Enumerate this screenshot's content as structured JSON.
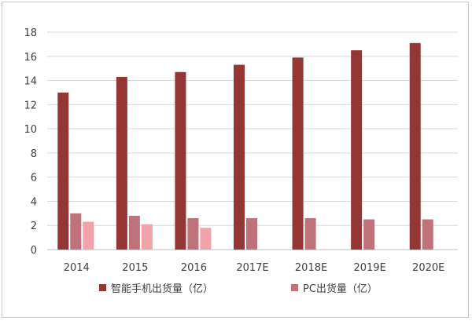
{
  "chart_data": {
    "type": "bar",
    "categories": [
      "2014",
      "2015",
      "2016",
      "2017E",
      "2018E",
      "2019E",
      "2020E"
    ],
    "series": [
      {
        "name": "智能手机出货量（亿）",
        "color": "#943634",
        "values": [
          13.0,
          14.3,
          14.7,
          15.3,
          15.9,
          16.5,
          17.1
        ],
        "in_legend": true
      },
      {
        "name": "PC出货量（亿）",
        "color": "#c0727a",
        "values": [
          3.0,
          2.8,
          2.6,
          2.6,
          2.6,
          2.5,
          2.5
        ],
        "in_legend": true
      },
      {
        "name": "",
        "color": "#f2a3aa",
        "values": [
          2.3,
          2.1,
          1.8,
          null,
          null,
          null,
          null
        ],
        "in_legend": false
      }
    ],
    "y_ticks": [
      "0",
      "2",
      "4",
      "6",
      "8",
      "10",
      "12",
      "14",
      "16",
      "18"
    ],
    "ylim": [
      0,
      18
    ],
    "grid": true,
    "legend_position": "bottom"
  }
}
